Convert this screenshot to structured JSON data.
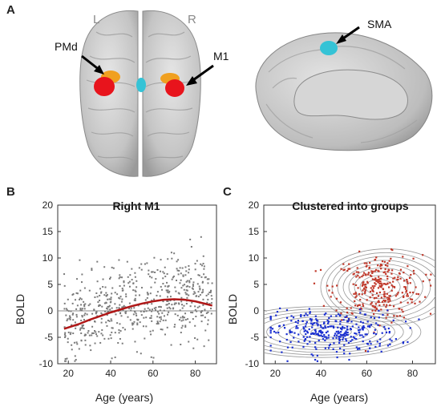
{
  "panels": {
    "a": "A",
    "b": "B",
    "c": "C"
  },
  "brain": {
    "left_label": "L",
    "right_label": "R",
    "regions": [
      "PMd",
      "M1",
      "SMA"
    ],
    "colors": {
      "cortex": "#c8c8c8",
      "m1": "#e8141c",
      "pmd": "#f0a020",
      "sma": "#35c3d6"
    }
  },
  "colors": {
    "gray_points": "#7a7a7a",
    "fit_curve": "#b01818",
    "zero_line": "#888888",
    "group_old": "#c0392b",
    "group_young": "#1a2fd0",
    "contour": "#999999"
  },
  "chart_data": [
    {
      "type": "scatter",
      "title": "Right M1",
      "xlabel": "Age (years)",
      "ylabel": "BOLD",
      "xlim": [
        15,
        90
      ],
      "ylim": [
        -10,
        20
      ],
      "xticks": [
        20,
        40,
        60,
        80
      ],
      "yticks": [
        -10,
        -5,
        0,
        5,
        10,
        15,
        20
      ],
      "zero_line": true,
      "fit_curve": {
        "x": [
          18,
          25,
          30,
          35,
          40,
          45,
          50,
          55,
          60,
          65,
          70,
          75,
          80,
          85,
          88
        ],
        "y": [
          -3.4,
          -2.5,
          -1.7,
          -1.0,
          -0.3,
          0.3,
          0.9,
          1.4,
          1.8,
          2.1,
          2.2,
          2.1,
          1.8,
          1.3,
          1.0
        ]
      },
      "points_description": "approximately 600 participants aged 18 to 88 with BOLD values mostly between -8 and 12"
    },
    {
      "type": "scatter",
      "title": "Clustered into groups",
      "xlabel": "Age (years)",
      "ylabel": "BOLD",
      "xlim": [
        15,
        90
      ],
      "ylim": [
        -10,
        20
      ],
      "xticks": [
        20,
        40,
        60,
        80
      ],
      "yticks": [
        -10,
        -5,
        0,
        5,
        10,
        15,
        20
      ],
      "clusters": [
        {
          "color": "red",
          "center": [
            65,
            4.5
          ],
          "spread": [
            12,
            3
          ]
        },
        {
          "color": "blue",
          "center": [
            45,
            -4
          ],
          "spread": [
            18,
            2
          ]
        }
      ]
    }
  ]
}
